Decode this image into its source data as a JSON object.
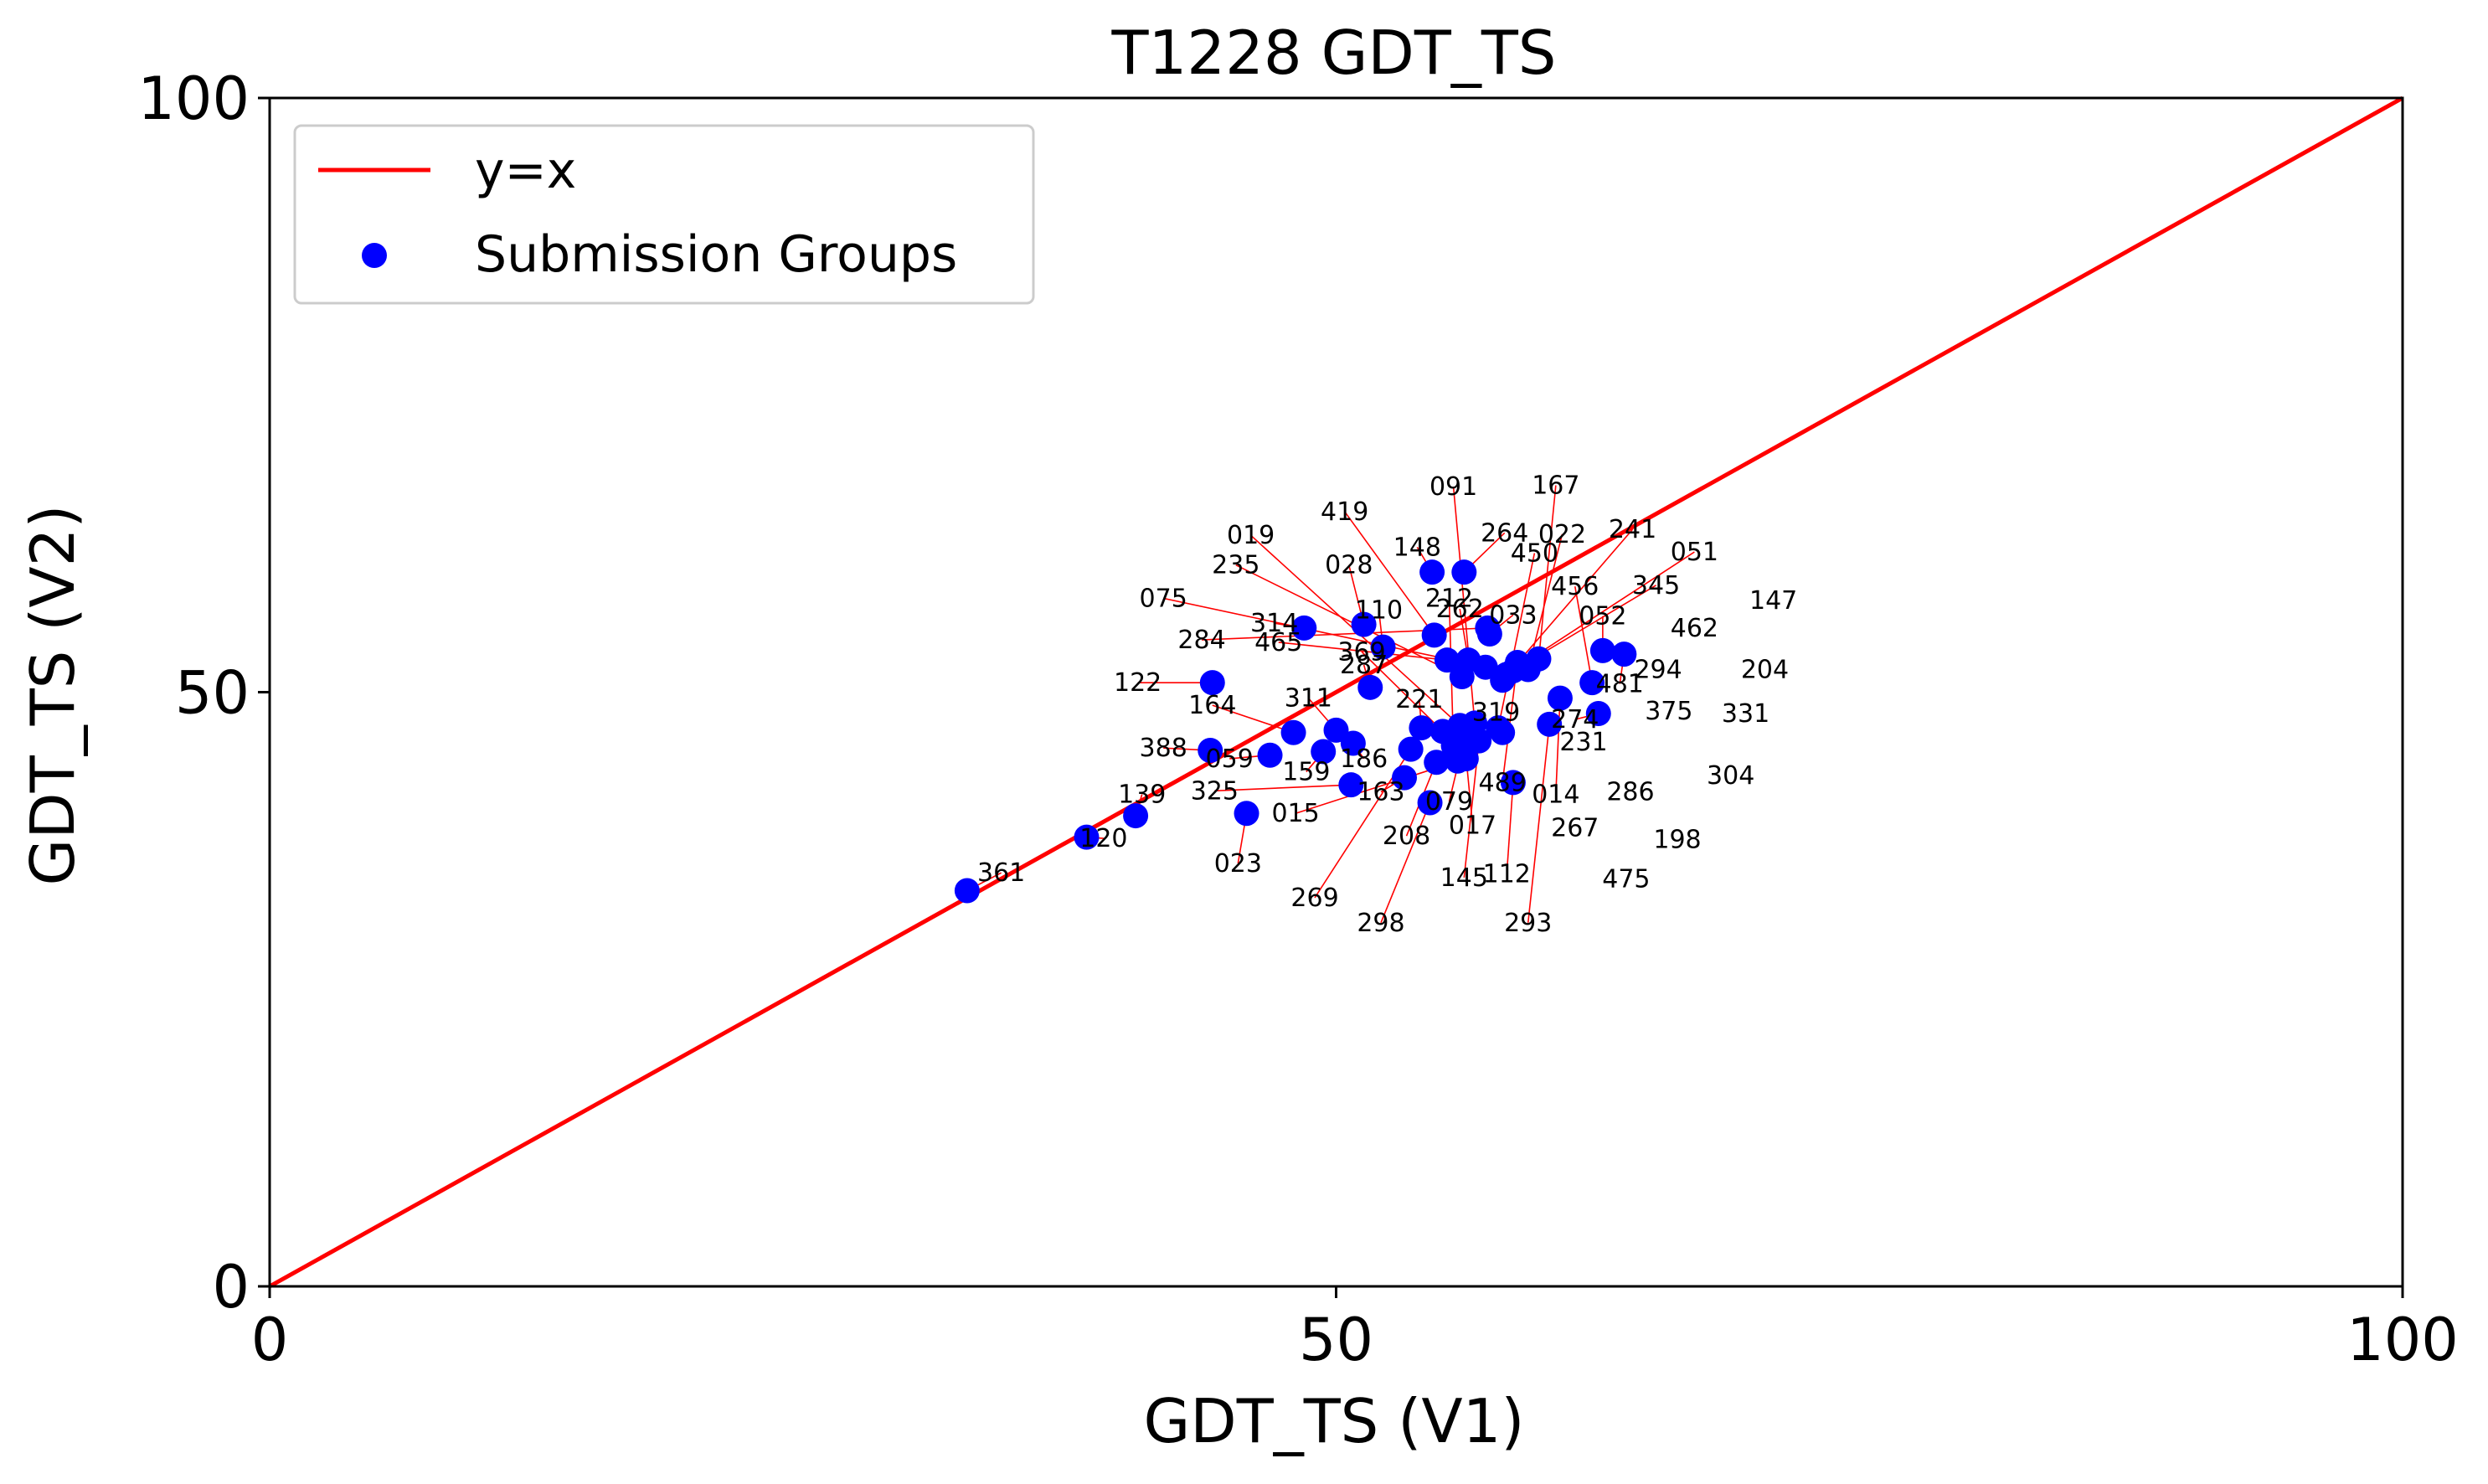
{
  "chart_data": {
    "type": "scatter",
    "title": "T1228 GDT_TS",
    "xlabel": "GDT_TS (V1)",
    "ylabel": "GDT_TS (V2)",
    "xlim": [
      0,
      100
    ],
    "ylim": [
      0,
      100
    ],
    "xticks": [
      0,
      50,
      100
    ],
    "yticks": [
      0,
      50,
      100
    ],
    "grid": false,
    "legend_position": "top-left",
    "colors": {
      "reference_line": "#ff0000",
      "points": "#0000ff",
      "annotation_arrows": "#ff0000"
    },
    "series": [
      {
        "name": "y=x",
        "type": "line",
        "x": [
          0,
          100
        ],
        "y": [
          0,
          100
        ]
      },
      {
        "name": "Submission Groups",
        "type": "scatter",
        "points": [
          {
            "label": "361",
            "x": 32.7,
            "y": 33.3
          },
          {
            "label": "120",
            "x": 38.3,
            "y": 37.8
          },
          {
            "label": "139",
            "x": 40.6,
            "y": 39.6
          },
          {
            "label": "122",
            "x": 44.2,
            "y": 50.8
          },
          {
            "label": "388",
            "x": 44.1,
            "y": 45.1
          },
          {
            "label": "023",
            "x": 45.8,
            "y": 39.8
          },
          {
            "label": "059",
            "x": 46.9,
            "y": 44.7
          },
          {
            "label": "164",
            "x": 48.0,
            "y": 46.6
          },
          {
            "label": "314",
            "x": 48.5,
            "y": 55.4
          },
          {
            "label": "159",
            "x": 49.4,
            "y": 45.0
          },
          {
            "label": "311",
            "x": 50.0,
            "y": 46.8
          },
          {
            "label": "325",
            "x": 50.7,
            "y": 42.2
          },
          {
            "label": "186",
            "x": 50.8,
            "y": 45.7
          },
          {
            "label": "028",
            "x": 51.3,
            "y": 55.7
          },
          {
            "label": "287",
            "x": 51.6,
            "y": 50.4
          },
          {
            "label": "110",
            "x": 52.2,
            "y": 53.8
          },
          {
            "label": "163",
            "x": 53.2,
            "y": 42.8
          },
          {
            "label": "269",
            "x": 53.5,
            "y": 45.2
          },
          {
            "label": "221",
            "x": 54.0,
            "y": 47.0
          },
          {
            "label": "298",
            "x": 54.4,
            "y": 40.7
          },
          {
            "label": "148",
            "x": 54.5,
            "y": 60.1
          },
          {
            "label": "419",
            "x": 54.6,
            "y": 54.8
          },
          {
            "label": "208",
            "x": 54.7,
            "y": 44.1
          },
          {
            "label": "369",
            "x": 55.0,
            "y": 46.7
          },
          {
            "label": "465",
            "x": 55.2,
            "y": 52.7
          },
          {
            "label": "212",
            "x": 55.5,
            "y": 45.5
          },
          {
            "label": "015",
            "x": 55.7,
            "y": 44.2
          },
          {
            "label": "019",
            "x": 55.8,
            "y": 47.2
          },
          {
            "label": "235",
            "x": 55.9,
            "y": 51.3
          },
          {
            "label": "079",
            "x": 56.0,
            "y": 46.0
          },
          {
            "label": "264",
            "x": 56.0,
            "y": 60.1
          },
          {
            "label": "017",
            "x": 56.1,
            "y": 44.4
          },
          {
            "label": "262",
            "x": 56.2,
            "y": 52.7
          },
          {
            "label": "091",
            "x": 56.5,
            "y": 47.4
          },
          {
            "label": "145",
            "x": 56.7,
            "y": 45.9
          },
          {
            "label": "075",
            "x": 57.0,
            "y": 52.1
          },
          {
            "label": "284",
            "x": 57.1,
            "y": 55.4
          },
          {
            "label": "033",
            "x": 57.2,
            "y": 54.9
          },
          {
            "label": "450",
            "x": 57.6,
            "y": 47.0
          },
          {
            "label": "319",
            "x": 57.8,
            "y": 46.6
          },
          {
            "label": "112",
            "x": 58.3,
            "y": 42.4
          },
          {
            "label": "489",
            "x": 58.5,
            "y": 52.5
          },
          {
            "label": "022",
            "x": 59.0,
            "y": 51.9
          },
          {
            "label": "167",
            "x": 59.5,
            "y": 52.8
          },
          {
            "label": "293",
            "x": 60.0,
            "y": 47.3
          },
          {
            "label": "014",
            "x": 60.5,
            "y": 49.5
          },
          {
            "label": "456",
            "x": 62.0,
            "y": 50.8
          },
          {
            "label": "274",
            "x": 62.3,
            "y": 48.2
          },
          {
            "label": "052",
            "x": 62.5,
            "y": 53.5
          },
          {
            "label": "481",
            "x": 63.5,
            "y": 53.2
          },
          {
            "label": "241",
            "x": 57.8,
            "y": 51.0
          },
          {
            "label": "051",
            "x": 58.0,
            "y": 51.5
          },
          {
            "label": "345",
            "x": 58.3,
            "y": 51.8
          }
        ]
      }
    ],
    "annotation_labels": [
      {
        "label": "091",
        "x": 55.5,
        "y": 67.3
      },
      {
        "label": "167",
        "x": 60.3,
        "y": 67.4
      },
      {
        "label": "419",
        "x": 50.4,
        "y": 65.2
      },
      {
        "label": "264",
        "x": 57.9,
        "y": 63.4
      },
      {
        "label": "022",
        "x": 60.6,
        "y": 63.3
      },
      {
        "label": "241",
        "x": 63.9,
        "y": 63.7
      },
      {
        "label": "019",
        "x": 46.0,
        "y": 63.2
      },
      {
        "label": "148",
        "x": 53.8,
        "y": 62.2
      },
      {
        "label": "450",
        "x": 59.3,
        "y": 61.7
      },
      {
        "label": "051",
        "x": 66.8,
        "y": 61.8
      },
      {
        "label": "235",
        "x": 45.3,
        "y": 60.7
      },
      {
        "label": "028",
        "x": 50.6,
        "y": 60.7
      },
      {
        "label": "456",
        "x": 61.2,
        "y": 58.9
      },
      {
        "label": "345",
        "x": 65.0,
        "y": 59.0
      },
      {
        "label": "075",
        "x": 41.9,
        "y": 57.9
      },
      {
        "label": "212",
        "x": 55.3,
        "y": 57.9
      },
      {
        "label": "147",
        "x": 70.5,
        "y": 57.7
      },
      {
        "label": "110",
        "x": 52.0,
        "y": 56.9
      },
      {
        "label": "262",
        "x": 55.8,
        "y": 57.0
      },
      {
        "label": "033",
        "x": 58.3,
        "y": 56.5
      },
      {
        "label": "052",
        "x": 62.5,
        "y": 56.4
      },
      {
        "label": "314",
        "x": 47.1,
        "y": 55.8
      },
      {
        "label": "462",
        "x": 66.8,
        "y": 55.4
      },
      {
        "label": "284",
        "x": 43.7,
        "y": 54.4
      },
      {
        "label": "465",
        "x": 47.3,
        "y": 54.2
      },
      {
        "label": "369",
        "x": 51.2,
        "y": 53.4
      },
      {
        "label": "294",
        "x": 65.1,
        "y": 51.9
      },
      {
        "label": "204",
        "x": 70.1,
        "y": 51.9
      },
      {
        "label": "287",
        "x": 51.3,
        "y": 52.3
      },
      {
        "label": "122",
        "x": 40.7,
        "y": 50.8
      },
      {
        "label": "481",
        "x": 63.3,
        "y": 50.7
      },
      {
        "label": "221",
        "x": 53.9,
        "y": 49.4
      },
      {
        "label": "311",
        "x": 48.7,
        "y": 49.5
      },
      {
        "label": "164",
        "x": 44.2,
        "y": 48.9
      },
      {
        "label": "319",
        "x": 57.5,
        "y": 48.3
      },
      {
        "label": "375",
        "x": 65.6,
        "y": 48.4
      },
      {
        "label": "331",
        "x": 69.2,
        "y": 48.2
      },
      {
        "label": "274",
        "x": 61.2,
        "y": 47.7
      },
      {
        "label": "231",
        "x": 61.6,
        "y": 45.8
      },
      {
        "label": "388",
        "x": 41.9,
        "y": 45.3
      },
      {
        "label": "059",
        "x": 45.0,
        "y": 44.4
      },
      {
        "label": "186",
        "x": 51.3,
        "y": 44.4
      },
      {
        "label": "159",
        "x": 48.6,
        "y": 43.3
      },
      {
        "label": "304",
        "x": 68.5,
        "y": 43.0
      },
      {
        "label": "489",
        "x": 57.8,
        "y": 42.4
      },
      {
        "label": "325",
        "x": 44.3,
        "y": 41.7
      },
      {
        "label": "286",
        "x": 63.8,
        "y": 41.6
      },
      {
        "label": "163",
        "x": 52.1,
        "y": 41.6
      },
      {
        "label": "139",
        "x": 40.9,
        "y": 41.4
      },
      {
        "label": "014",
        "x": 60.3,
        "y": 41.4
      },
      {
        "label": "015",
        "x": 48.1,
        "y": 39.8
      },
      {
        "label": "079",
        "x": 55.3,
        "y": 40.8
      },
      {
        "label": "120",
        "x": 39.1,
        "y": 37.7
      },
      {
        "label": "017",
        "x": 56.4,
        "y": 38.8
      },
      {
        "label": "267",
        "x": 61.2,
        "y": 38.6
      },
      {
        "label": "208",
        "x": 53.3,
        "y": 37.9
      },
      {
        "label": "198",
        "x": 66.0,
        "y": 37.6
      },
      {
        "label": "023",
        "x": 45.4,
        "y": 35.6
      },
      {
        "label": "361",
        "x": 34.3,
        "y": 34.8
      },
      {
        "label": "112",
        "x": 58.0,
        "y": 34.7
      },
      {
        "label": "145",
        "x": 56.0,
        "y": 34.4
      },
      {
        "label": "475",
        "x": 63.6,
        "y": 34.3
      },
      {
        "label": "269",
        "x": 49.0,
        "y": 32.7
      },
      {
        "label": "298",
        "x": 52.1,
        "y": 30.6
      },
      {
        "label": "293",
        "x": 59.0,
        "y": 30.6
      }
    ]
  }
}
